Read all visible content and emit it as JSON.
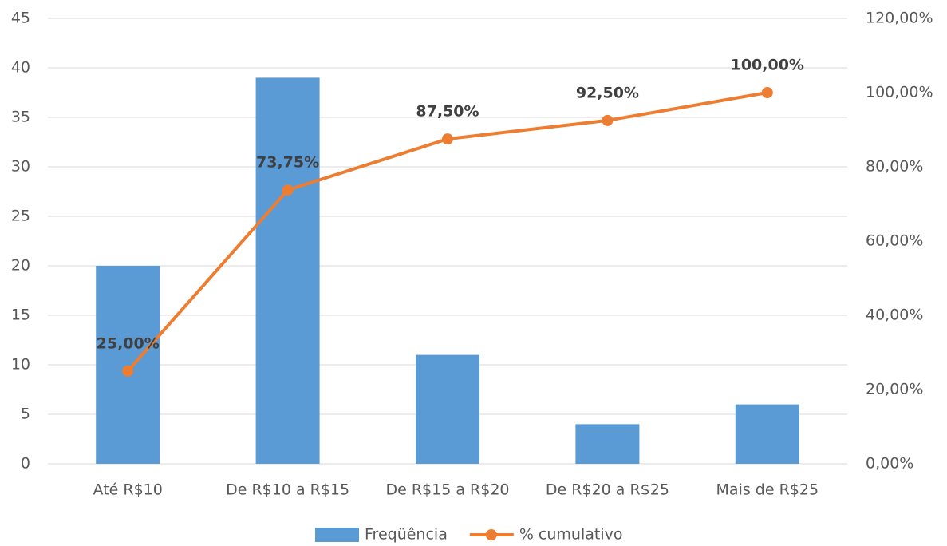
{
  "chart_data": {
    "type": "combo",
    "categories": [
      "Até R$10",
      "De R$10 a R$15",
      "De R$15 a R$20",
      "De R$20 a R$25",
      "Mais de R$25"
    ],
    "series": [
      {
        "name": "Freqüência",
        "type": "bar",
        "color": "#5b9bd5",
        "values": [
          20,
          39,
          11,
          4,
          6
        ]
      },
      {
        "name": "% cumulativo",
        "type": "line",
        "axis": "y2",
        "color": "#ed7d31",
        "values": [
          25,
          73.75,
          87.5,
          92.5,
          100
        ],
        "value_labels": [
          "25,00%",
          "73,75%",
          "87,50%",
          "92,50%",
          "100,00%"
        ]
      }
    ],
    "ylim": [
      0,
      45
    ],
    "yticks": [
      0,
      5,
      10,
      15,
      20,
      25,
      30,
      35,
      40,
      45
    ],
    "y2lim": [
      0,
      120
    ],
    "y2ticks": [
      {
        "value": 0,
        "label": "0,00%"
      },
      {
        "value": 20,
        "label": "20,00%"
      },
      {
        "value": 40,
        "label": "40,00%"
      },
      {
        "value": 60,
        "label": "60,00%"
      },
      {
        "value": 80,
        "label": "80,00%"
      },
      {
        "value": 100,
        "label": "100,00%"
      },
      {
        "value": 120,
        "label": "120,00%"
      }
    ],
    "grid": true,
    "legend": "bottom"
  }
}
